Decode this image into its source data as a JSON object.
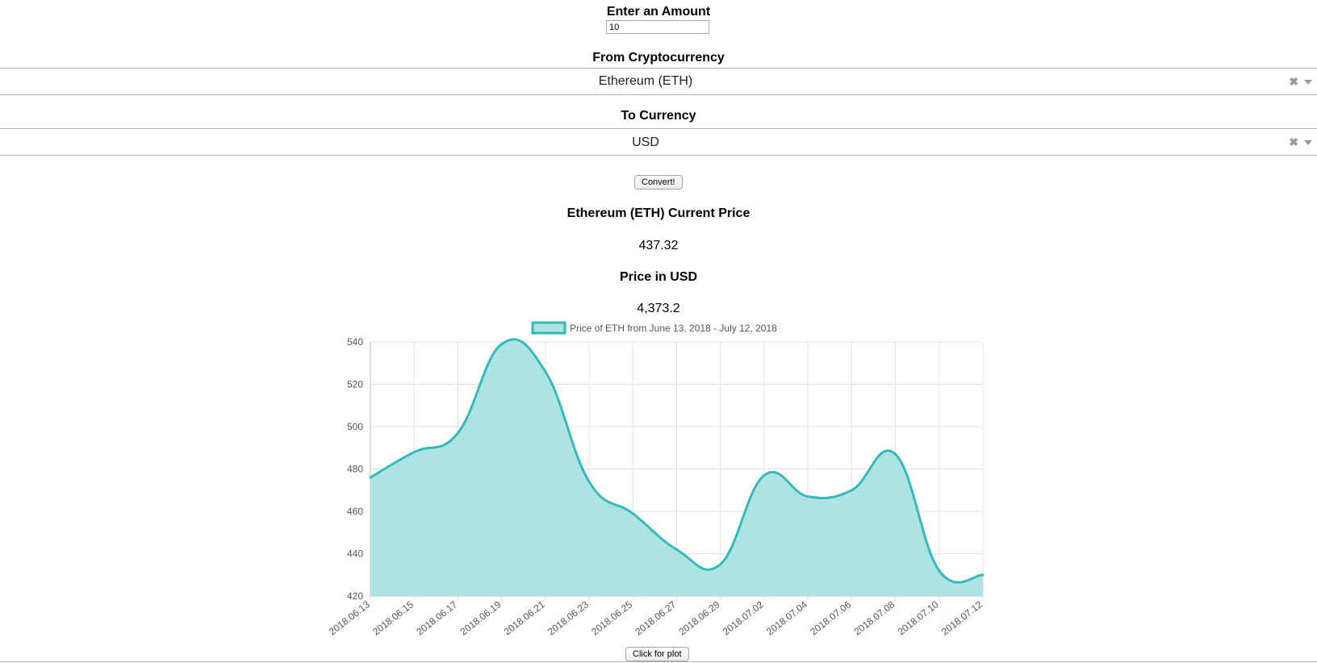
{
  "form": {
    "amount_label": "Enter an Amount",
    "amount_value": "10",
    "from_label": "From Cryptocurrency",
    "from_value": "Ethereum (ETH)",
    "to_label": "To Currency",
    "to_value": "USD",
    "convert_label": "Convert!",
    "clear_glyph": "✖"
  },
  "results": {
    "current_price_label": "Ethereum (ETH) Current Price",
    "current_price_value": "437.32",
    "converted_label": "Price in USD",
    "converted_value": "4,373.2"
  },
  "plot_button_label": "Click for plot",
  "colors": {
    "line": "#36b9bb",
    "fill": "#aee3e3",
    "grid": "#e3e3e3"
  },
  "chart_data": {
    "type": "area",
    "legend": "Price of ETH from June 13, 2018 - July 12, 2018",
    "legend_position": "top",
    "ylim": [
      420,
      540
    ],
    "yticks": [
      420,
      440,
      460,
      480,
      500,
      520,
      540
    ],
    "grid": true,
    "x": [
      "2018.06.13",
      "2018.06.15",
      "2018.06.17",
      "2018.06.19",
      "2018.06.21",
      "2018.06.23",
      "2018.06.25",
      "2018.06.27",
      "2018.06.29",
      "2018.07.02",
      "2018.07.04",
      "2018.07.06",
      "2018.07.08",
      "2018.07.10",
      "2018.07.12"
    ],
    "series": [
      {
        "name": "Price of ETH from June 13, 2018 - July 12, 2018",
        "values": [
          476,
          488,
          497,
          539,
          526,
          474,
          459,
          442,
          435,
          477,
          467,
          470,
          487,
          432,
          430
        ]
      }
    ]
  }
}
